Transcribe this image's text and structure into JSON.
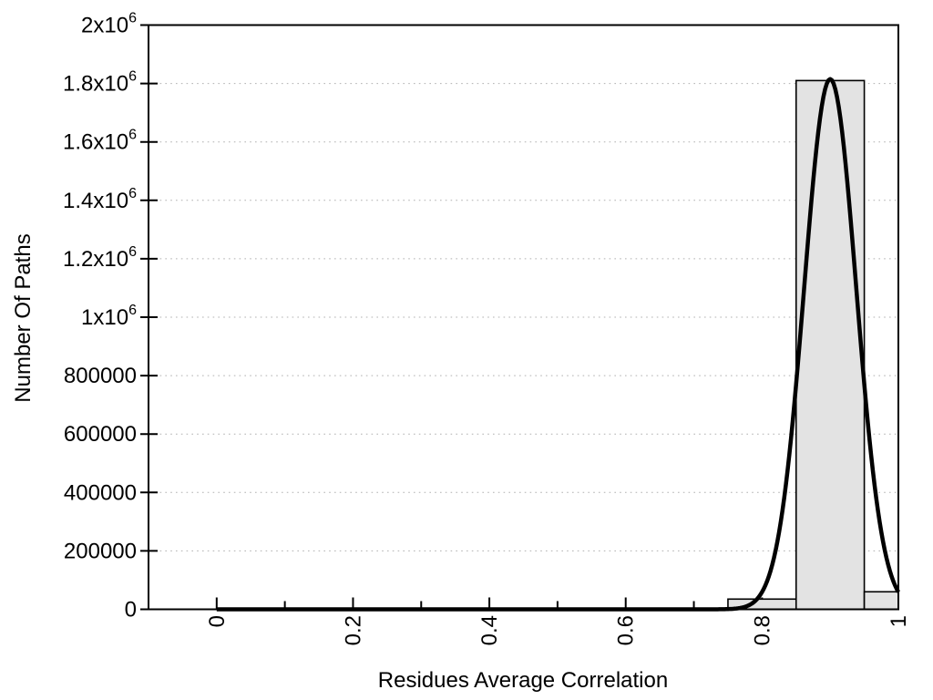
{
  "chart_data": {
    "type": "bar",
    "subtype": "histogram_with_fit_curve",
    "title": "",
    "xlabel": "Residues Average Correlation",
    "ylabel": "Number Of Paths",
    "xlim": [
      -0.1,
      1.0
    ],
    "ylim": [
      0,
      2000000
    ],
    "grid": "horizontal-dotted",
    "legend": "none",
    "x_major_ticks": [
      {
        "value": 0,
        "label": "0"
      },
      {
        "value": 0.2,
        "label": "0.2"
      },
      {
        "value": 0.4,
        "label": "0.4"
      },
      {
        "value": 0.6,
        "label": "0.6"
      },
      {
        "value": 0.8,
        "label": "0.8"
      },
      {
        "value": 1,
        "label": "1"
      }
    ],
    "x_minor_ticks": [
      0.1,
      0.3,
      0.5,
      0.7,
      0.9
    ],
    "y_ticks": [
      {
        "value": 0,
        "label": "0"
      },
      {
        "value": 200000,
        "label": "200000"
      },
      {
        "value": 400000,
        "label": "400000"
      },
      {
        "value": 600000,
        "label": "600000"
      },
      {
        "value": 800000,
        "label": "800000"
      },
      {
        "value": 1000000,
        "label": "1x10^6"
      },
      {
        "value": 1200000,
        "label": "1.2x10^6"
      },
      {
        "value": 1400000,
        "label": "1.4x10^6"
      },
      {
        "value": 1600000,
        "label": "1.6x10^6"
      },
      {
        "value": 1800000,
        "label": "1.8x10^6"
      },
      {
        "value": 2000000,
        "label": "2x10^6"
      }
    ],
    "bars": [
      {
        "bin_start": 0.75,
        "bin_end": 0.85,
        "count": 35000
      },
      {
        "bin_start": 0.85,
        "bin_end": 0.95,
        "count": 1810000
      },
      {
        "bin_start": 0.95,
        "bin_end": 1.0,
        "count": 60000
      }
    ],
    "fit_curve": {
      "shape": "gaussian",
      "peak": 1815000,
      "center": 0.9,
      "sigma": 0.0382,
      "x_start": 0,
      "x_end": 1
    },
    "colors": {
      "background": "#ffffff",
      "axis": "#000000",
      "text": "#000000",
      "grid": "#b0b0b0",
      "bar_fill": "#e3e3e3",
      "bar_border": "#000000",
      "curve": "#000000"
    }
  }
}
